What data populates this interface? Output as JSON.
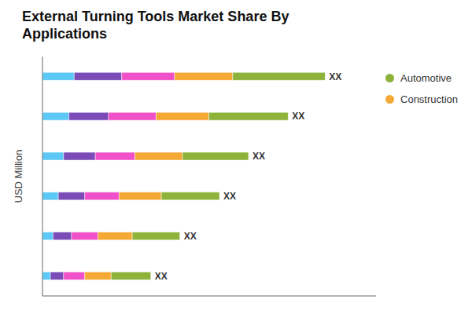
{
  "chart_data": {
    "type": "bar",
    "orientation": "horizontal",
    "stacked": true,
    "title": "External Turning Tools Market Share By\nApplications",
    "ylabel": "USD Million",
    "categories": [
      null,
      null,
      null,
      null,
      null,
      null
    ],
    "series": [
      {
        "color": "#5BC8F5",
        "values": [
          1.2,
          1.0,
          0.8,
          0.6,
          0.4,
          0.3
        ]
      },
      {
        "color": "#7B4BB8",
        "values": [
          1.8,
          1.5,
          1.2,
          1.0,
          0.7,
          0.5
        ]
      },
      {
        "color": "#F050C8",
        "values": [
          2.0,
          1.8,
          1.5,
          1.3,
          1.0,
          0.8
        ]
      },
      {
        "name": "Construction",
        "color": "#F5A833",
        "values": [
          2.2,
          2.0,
          1.8,
          1.6,
          1.3,
          1.0
        ]
      },
      {
        "name": "Automotive",
        "color": "#8DB33A",
        "values": [
          3.5,
          3.0,
          2.5,
          2.2,
          1.8,
          1.5
        ]
      }
    ],
    "annotations": [
      "XX",
      "XX",
      "XX",
      "XX",
      "XX",
      "XX"
    ],
    "xlim": [
      0,
      12.626
    ],
    "tick_labels": false,
    "legend": "upper right"
  }
}
